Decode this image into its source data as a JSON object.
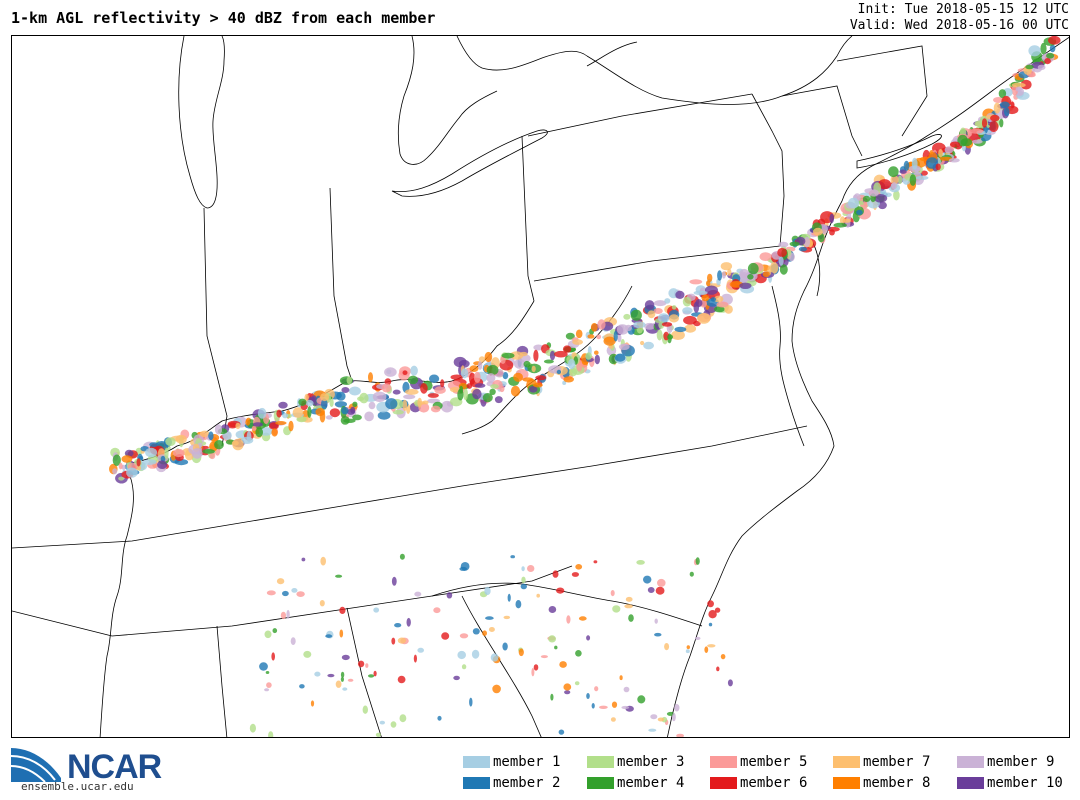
{
  "header": {
    "title": "1-km AGL reflectivity > 40 dBZ from each member",
    "init": "Init: Tue 2018-05-15 12 UTC",
    "valid": "Valid: Wed 2018-05-16 00 UTC"
  },
  "logo": {
    "name": "NCAR",
    "url": "ensemble.ucar.edu"
  },
  "legend": [
    {
      "label": "member 1",
      "color": "#a6cee3"
    },
    {
      "label": "member 2",
      "color": "#1f78b4"
    },
    {
      "label": "member 3",
      "color": "#b2df8a"
    },
    {
      "label": "member 4",
      "color": "#33a02c"
    },
    {
      "label": "member 5",
      "color": "#fb9a99"
    },
    {
      "label": "member 6",
      "color": "#e31a1c"
    },
    {
      "label": "member 7",
      "color": "#fdbf6f"
    },
    {
      "label": "member 8",
      "color": "#ff7f00"
    },
    {
      "label": "member 9",
      "color": "#cab2d6"
    },
    {
      "label": "member 10",
      "color": "#6a3d9a"
    }
  ]
}
